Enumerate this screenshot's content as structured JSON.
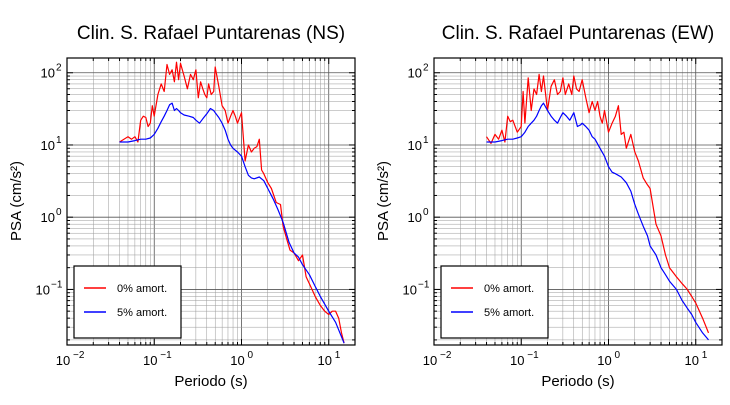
{
  "chart_data": [
    {
      "type": "line",
      "title": "Clin. S. Rafael Puntarenas (NS)",
      "xlabel": "Periodo (s)",
      "ylabel": "PSA (cm/s²)",
      "xscale": "log",
      "yscale": "log",
      "xlim": [
        0.01,
        20
      ],
      "ylim": [
        0.017,
        160
      ],
      "grid": true,
      "legend_position": "bottom-left",
      "x_tick_labels": [
        {
          "base": "10",
          "exp": "−2"
        },
        {
          "base": "10",
          "exp": "−1"
        },
        {
          "base": "10",
          "exp": "0"
        },
        {
          "base": "10",
          "exp": "1"
        }
      ],
      "y_tick_labels": [
        {
          "base": "10",
          "exp": "−1"
        },
        {
          "base": "10",
          "exp": "0"
        },
        {
          "base": "10",
          "exp": "1"
        },
        {
          "base": "10",
          "exp": "2"
        }
      ],
      "series": [
        {
          "name": "0% amort.",
          "color": "#ff0000",
          "x": [
            0.04,
            0.05,
            0.055,
            0.06,
            0.065,
            0.07,
            0.075,
            0.08,
            0.085,
            0.09,
            0.095,
            0.1,
            0.11,
            0.12,
            0.13,
            0.14,
            0.15,
            0.16,
            0.17,
            0.18,
            0.19,
            0.2,
            0.22,
            0.24,
            0.26,
            0.28,
            0.3,
            0.32,
            0.34,
            0.36,
            0.38,
            0.4,
            0.42,
            0.45,
            0.48,
            0.5,
            0.55,
            0.6,
            0.65,
            0.7,
            0.75,
            0.8,
            0.85,
            0.9,
            1.0,
            1.1,
            1.2,
            1.3,
            1.4,
            1.5,
            1.6,
            1.7,
            1.8,
            2.0,
            2.2,
            2.5,
            2.8,
            3.0,
            3.3,
            3.6,
            4.0,
            4.5,
            5.0,
            5.5,
            6.0,
            7.0,
            8.0,
            9.0,
            10.0,
            11.0,
            12.0,
            13.0,
            14.0,
            15.0
          ],
          "y": [
            11,
            13,
            12,
            13,
            11,
            22,
            25,
            24,
            18,
            20,
            35,
            25,
            50,
            70,
            55,
            130,
            95,
            110,
            75,
            140,
            80,
            135,
            90,
            60,
            95,
            80,
            110,
            45,
            75,
            60,
            50,
            45,
            70,
            50,
            55,
            120,
            65,
            35,
            30,
            20,
            25,
            30,
            25,
            20,
            28,
            6,
            10,
            8,
            9,
            9.5,
            12,
            4.5,
            4,
            3,
            2.5,
            1.6,
            1.5,
            0.75,
            0.5,
            0.35,
            0.32,
            0.25,
            0.3,
            0.15,
            0.12,
            0.08,
            0.06,
            0.05,
            0.045,
            0.05,
            0.05,
            0.04,
            0.025,
            0.018
          ]
        },
        {
          "name": "5% amort.",
          "color": "#0000ff",
          "x": [
            0.04,
            0.05,
            0.06,
            0.07,
            0.08,
            0.09,
            0.1,
            0.11,
            0.12,
            0.13,
            0.14,
            0.15,
            0.16,
            0.17,
            0.18,
            0.19,
            0.2,
            0.22,
            0.25,
            0.28,
            0.3,
            0.33,
            0.36,
            0.4,
            0.44,
            0.48,
            0.5,
            0.55,
            0.6,
            0.65,
            0.7,
            0.75,
            0.8,
            0.9,
            1.0,
            1.1,
            1.2,
            1.3,
            1.4,
            1.6,
            1.8,
            2.0,
            2.3,
            2.6,
            3.0,
            3.5,
            4.0,
            4.5,
            5.0,
            6.0,
            7.0,
            8.0,
            10.0,
            12.0,
            15.0
          ],
          "y": [
            11,
            11,
            11.5,
            12,
            12,
            12.5,
            14,
            17,
            21,
            25,
            30,
            36,
            38,
            30,
            32,
            30,
            28,
            26,
            25,
            24,
            22,
            20,
            23,
            27,
            32,
            30,
            28,
            24,
            20,
            16,
            12,
            10,
            9,
            8,
            7,
            5,
            3.8,
            3.5,
            3.4,
            3.6,
            3.2,
            2.5,
            1.8,
            1.3,
            0.85,
            0.45,
            0.32,
            0.28,
            0.22,
            0.16,
            0.11,
            0.08,
            0.05,
            0.035,
            0.018
          ]
        }
      ]
    },
    {
      "type": "line",
      "title": "Clin. S. Rafael Puntarenas (EW)",
      "xlabel": "Periodo (s)",
      "ylabel": "PSA (cm/s²)",
      "xscale": "log",
      "yscale": "log",
      "xlim": [
        0.01,
        20
      ],
      "ylim": [
        0.017,
        160
      ],
      "grid": true,
      "legend_position": "bottom-left",
      "x_tick_labels": [
        {
          "base": "10",
          "exp": "−2"
        },
        {
          "base": "10",
          "exp": "−1"
        },
        {
          "base": "10",
          "exp": "0"
        },
        {
          "base": "10",
          "exp": "1"
        }
      ],
      "y_tick_labels": [
        {
          "base": "10",
          "exp": "−1"
        },
        {
          "base": "10",
          "exp": "0"
        },
        {
          "base": "10",
          "exp": "1"
        },
        {
          "base": "10",
          "exp": "2"
        }
      ],
      "series": [
        {
          "name": "0% amort.",
          "color": "#ff0000",
          "x": [
            0.04,
            0.045,
            0.05,
            0.055,
            0.06,
            0.065,
            0.07,
            0.075,
            0.08,
            0.09,
            0.1,
            0.105,
            0.11,
            0.12,
            0.13,
            0.14,
            0.15,
            0.16,
            0.17,
            0.18,
            0.2,
            0.22,
            0.24,
            0.26,
            0.28,
            0.3,
            0.32,
            0.35,
            0.38,
            0.4,
            0.43,
            0.46,
            0.5,
            0.55,
            0.6,
            0.65,
            0.7,
            0.75,
            0.8,
            0.85,
            0.9,
            1.0,
            1.1,
            1.2,
            1.3,
            1.4,
            1.5,
            1.6,
            1.8,
            2.0,
            2.2,
            2.5,
            2.8,
            3.0,
            3.5,
            4.0,
            4.5,
            5.0,
            6.0,
            7.0,
            8.0,
            9.0,
            10.0,
            12.0,
            14.0
          ],
          "y": [
            13,
            10.5,
            14,
            12,
            16,
            11,
            25,
            21,
            22,
            15,
            18,
            55,
            20,
            85,
            30,
            60,
            50,
            95,
            55,
            90,
            30,
            65,
            80,
            50,
            55,
            85,
            50,
            70,
            50,
            90,
            60,
            55,
            80,
            45,
            28,
            40,
            30,
            40,
            25,
            20,
            30,
            15,
            20,
            25,
            35,
            14,
            15,
            9,
            14,
            8,
            6,
            3.5,
            2.8,
            2.5,
            0.8,
            0.55,
            0.3,
            0.2,
            0.15,
            0.12,
            0.1,
            0.08,
            0.065,
            0.04,
            0.025
          ]
        },
        {
          "name": "5% amort.",
          "color": "#0000ff",
          "x": [
            0.04,
            0.05,
            0.06,
            0.07,
            0.08,
            0.09,
            0.1,
            0.11,
            0.12,
            0.13,
            0.14,
            0.15,
            0.16,
            0.17,
            0.18,
            0.2,
            0.22,
            0.24,
            0.26,
            0.28,
            0.3,
            0.33,
            0.36,
            0.4,
            0.44,
            0.48,
            0.5,
            0.55,
            0.6,
            0.65,
            0.7,
            0.8,
            0.9,
            1.0,
            1.1,
            1.2,
            1.4,
            1.6,
            1.8,
            2.0,
            2.2,
            2.5,
            2.8,
            3.0,
            3.5,
            4.0,
            4.5,
            5.0,
            6.0,
            7.0,
            8.0,
            9.0,
            10.0,
            12.0,
            14.0
          ],
          "y": [
            11,
            11,
            11.5,
            12,
            12,
            12.5,
            13,
            15,
            18,
            20,
            22,
            25,
            30,
            35,
            38,
            30,
            25,
            22,
            20,
            24,
            28,
            25,
            22,
            28,
            18,
            19,
            20,
            18,
            16,
            13,
            12,
            9,
            7,
            5,
            4.2,
            4,
            3.6,
            3,
            2.3,
            1.5,
            1.1,
            0.75,
            0.55,
            0.4,
            0.3,
            0.2,
            0.16,
            0.13,
            0.1,
            0.07,
            0.055,
            0.045,
            0.035,
            0.025,
            0.02
          ]
        }
      ]
    }
  ]
}
